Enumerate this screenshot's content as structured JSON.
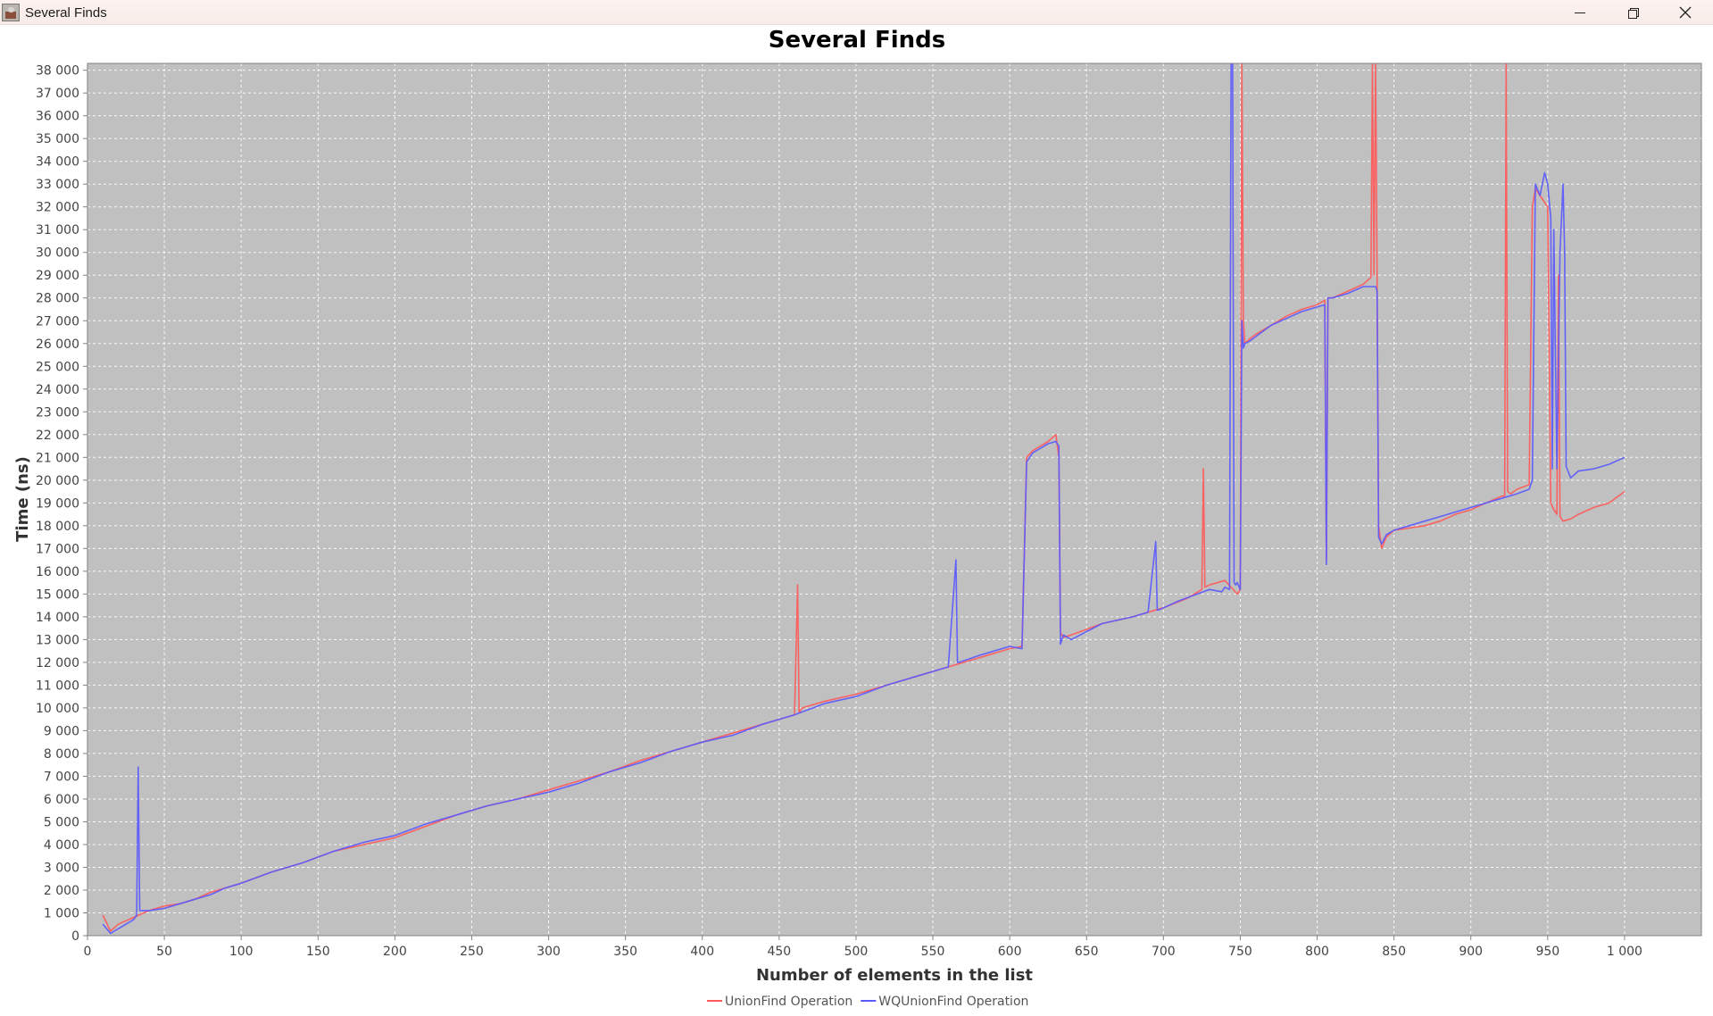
{
  "window": {
    "title": "Several Finds",
    "icon": "java-app-icon",
    "controls": {
      "minimize": "minimize-icon",
      "maximize": "restore-icon",
      "close": "close-icon"
    }
  },
  "chart_data": {
    "type": "line",
    "title": "Several Finds",
    "xlabel": "Number of elements in the list",
    "ylabel": "Time (ns)",
    "xlim": [
      0,
      1050
    ],
    "ylim": [
      0,
      38300
    ],
    "x_ticks": [
      0,
      50,
      100,
      150,
      200,
      250,
      300,
      350,
      400,
      450,
      500,
      550,
      600,
      650,
      700,
      750,
      800,
      850,
      900,
      950,
      1000
    ],
    "x_tick_labels": [
      "0",
      "50",
      "100",
      "150",
      "200",
      "250",
      "300",
      "350",
      "400",
      "450",
      "500",
      "550",
      "600",
      "650",
      "700",
      "750",
      "800",
      "850",
      "900",
      "950",
      "1 000"
    ],
    "y_ticks": [
      0,
      1000,
      2000,
      3000,
      4000,
      5000,
      6000,
      7000,
      8000,
      9000,
      10000,
      11000,
      12000,
      13000,
      14000,
      15000,
      16000,
      17000,
      18000,
      19000,
      20000,
      21000,
      22000,
      23000,
      24000,
      25000,
      26000,
      27000,
      28000,
      29000,
      30000,
      31000,
      32000,
      33000,
      34000,
      35000,
      36000,
      37000,
      38000
    ],
    "y_tick_labels": [
      "0",
      "1 000",
      "2 000",
      "3 000",
      "4 000",
      "5 000",
      "6 000",
      "7 000",
      "8 000",
      "9 000",
      "10 000",
      "11 000",
      "12 000",
      "13 000",
      "14 000",
      "15 000",
      "16 000",
      "17 000",
      "18 000",
      "19 000",
      "20 000",
      "21 000",
      "22 000",
      "23 000",
      "24 000",
      "25 000",
      "26 000",
      "27 000",
      "28 000",
      "29 000",
      "30 000",
      "31 000",
      "32 000",
      "33 000",
      "34 000",
      "35 000",
      "36 000",
      "37 000",
      "38 000"
    ],
    "grid": true,
    "plot_background": "#c0c0c0",
    "gridline_color": "#ffffff",
    "legend": "bottom-center",
    "series": [
      {
        "name": "UnionFind Operation",
        "color": "#ff5a5a",
        "x": [
          10,
          15,
          20,
          30,
          40,
          50,
          60,
          70,
          80,
          90,
          100,
          120,
          140,
          160,
          180,
          200,
          220,
          240,
          260,
          280,
          300,
          320,
          340,
          360,
          380,
          400,
          420,
          440,
          460,
          462,
          463,
          465,
          480,
          500,
          520,
          540,
          560,
          580,
          600,
          608,
          611,
          615,
          620,
          625,
          630,
          632,
          633,
          635,
          640,
          660,
          680,
          700,
          715,
          725,
          726,
          727,
          730,
          740,
          748,
          750,
          751,
          752,
          753,
          756,
          760,
          770,
          780,
          790,
          800,
          805,
          806,
          807,
          810,
          820,
          830,
          835,
          836,
          837,
          838,
          839,
          840,
          842,
          845,
          850,
          860,
          870,
          880,
          890,
          900,
          910,
          920,
          922,
          923,
          924,
          926,
          930,
          938,
          940,
          942,
          945,
          950,
          952,
          954,
          956,
          957,
          958,
          959,
          960,
          965,
          970,
          980,
          990,
          1000
        ],
        "y": [
          900,
          200,
          500,
          800,
          1100,
          1300,
          1400,
          1600,
          1900,
          2100,
          2300,
          2800,
          3200,
          3700,
          4000,
          4300,
          4800,
          5300,
          5700,
          6000,
          6400,
          6800,
          7200,
          7700,
          8100,
          8500,
          8900,
          9300,
          9700,
          15400,
          9800,
          10000,
          10300,
          10600,
          11000,
          11400,
          11800,
          12200,
          12600,
          12700,
          21000,
          21300,
          21500,
          21700,
          22000,
          21000,
          13300,
          13100,
          13200,
          13700,
          14000,
          14400,
          14800,
          15200,
          20500,
          15300,
          15400,
          15600,
          15000,
          15200,
          38300,
          27000,
          26000,
          26200,
          26400,
          26800,
          27200,
          27500,
          27700,
          27900,
          16500,
          28000,
          28000,
          28300,
          28600,
          28900,
          38300,
          29000,
          38300,
          29000,
          18000,
          17000,
          17500,
          17800,
          17900,
          18000,
          18200,
          18500,
          18700,
          19000,
          19300,
          19300,
          38300,
          19500,
          19400,
          19600,
          19800,
          32000,
          32800,
          32500,
          32000,
          19000,
          18700,
          18500,
          29000,
          18400,
          18300,
          18200,
          18300,
          18500,
          18800,
          19000,
          19500
        ]
      },
      {
        "name": "WQUnionFind Operation",
        "color": "#5a5aff",
        "x": [
          10,
          15,
          20,
          30,
          32,
          33,
          34,
          40,
          50,
          60,
          70,
          80,
          90,
          100,
          120,
          140,
          160,
          180,
          200,
          220,
          240,
          260,
          280,
          300,
          320,
          340,
          360,
          380,
          400,
          420,
          440,
          460,
          480,
          500,
          520,
          540,
          560,
          565,
          566,
          567,
          580,
          600,
          608,
          611,
          615,
          620,
          625,
          630,
          632,
          633,
          635,
          640,
          660,
          680,
          690,
          695,
          696,
          697,
          710,
          730,
          738,
          740,
          743,
          744,
          745,
          746,
          747,
          748,
          750,
          751,
          752,
          753,
          756,
          760,
          770,
          780,
          790,
          800,
          805,
          806,
          807,
          810,
          820,
          830,
          838,
          839,
          840,
          842,
          845,
          850,
          860,
          870,
          880,
          890,
          900,
          910,
          920,
          930,
          938,
          940,
          942,
          945,
          948,
          950,
          952,
          953,
          954,
          956,
          958,
          960,
          961,
          962,
          965,
          970,
          980,
          990,
          1000
        ],
        "y": [
          500,
          100,
          300,
          700,
          900,
          7400,
          1100,
          1100,
          1200,
          1400,
          1600,
          1800,
          2100,
          2300,
          2800,
          3200,
          3700,
          4100,
          4400,
          4900,
          5300,
          5700,
          6000,
          6300,
          6700,
          7200,
          7600,
          8100,
          8500,
          8800,
          9300,
          9700,
          10200,
          10500,
          11000,
          11400,
          11800,
          16500,
          12000,
          12000,
          12300,
          12700,
          12600,
          20800,
          21200,
          21400,
          21600,
          21700,
          21500,
          12800,
          13200,
          13000,
          13700,
          14000,
          14200,
          17300,
          14300,
          14300,
          14700,
          15200,
          15100,
          15300,
          15200,
          38300,
          38300,
          15500,
          15400,
          15500,
          15200,
          27000,
          25800,
          26000,
          26100,
          26300,
          26800,
          27100,
          27400,
          27600,
          27700,
          16300,
          28000,
          28000,
          28200,
          28500,
          28500,
          28300,
          17500,
          17200,
          17600,
          17800,
          18000,
          18200,
          18400,
          18600,
          18800,
          19000,
          19200,
          19400,
          19600,
          20000,
          33000,
          32500,
          33500,
          33000,
          31500,
          20500,
          31000,
          20500,
          30000,
          33000,
          30000,
          20600,
          20100,
          20400,
          20500,
          20700,
          21000
        ]
      }
    ]
  }
}
